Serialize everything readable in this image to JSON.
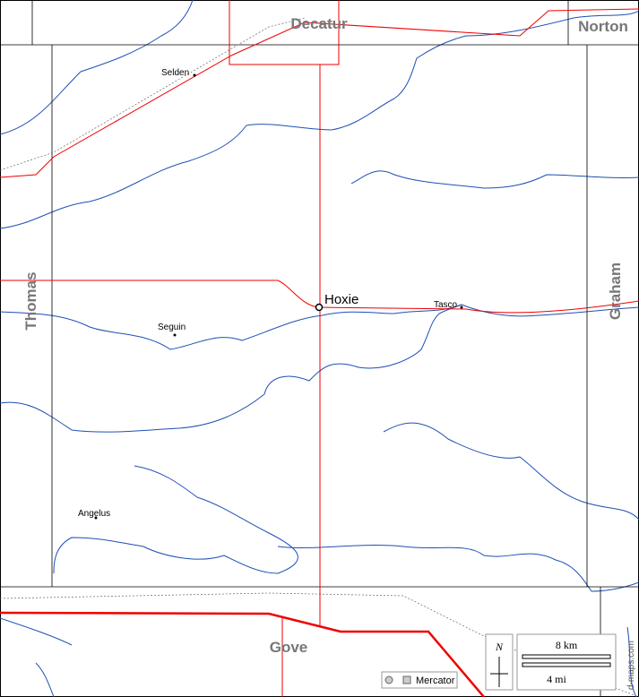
{
  "map": {
    "counties": [
      "Decatur",
      "Norton",
      "Thomas",
      "Graham",
      "Gove"
    ],
    "towns": [
      "Selden",
      "Hoxie",
      "Tasco",
      "Seguin",
      "Angelus"
    ],
    "scale": {
      "km": "8 km",
      "mi": "4 mi"
    },
    "north": "N",
    "projection": "Mercator",
    "credit": "d-maps.com"
  }
}
